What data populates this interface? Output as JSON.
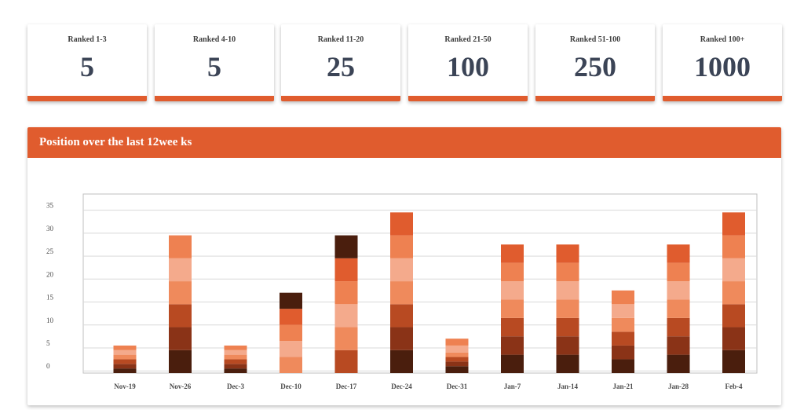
{
  "cards": [
    {
      "label": "Ranked 1-3",
      "value": "5"
    },
    {
      "label": "Ranked 4-10",
      "value": "5"
    },
    {
      "label": "Ranked 11-20",
      "value": "25"
    },
    {
      "label": "Ranked 21-50",
      "value": "100"
    },
    {
      "label": "Ranked 51-100",
      "value": "250"
    },
    {
      "label": "Ranked 100+",
      "value": "1000"
    }
  ],
  "panel": {
    "title": "Position  over the last 12wee ks"
  },
  "colors": {
    "accent": "#e05c2e",
    "series": [
      "#4a1e0d",
      "#8a3317",
      "#b84a22",
      "#ef8a5c",
      "#f4aa8c",
      "#ee8151",
      "#e05c2e"
    ]
  },
  "chart_data": {
    "type": "bar",
    "stacked": true,
    "categories": [
      "Nov-19",
      "Nov-26",
      "Dec-3",
      "Dec-10",
      "Dec-17",
      "Dec-24",
      "Dec-31",
      "Jan-7",
      "Jan-14",
      "Jan-21",
      "Jan-28",
      "Feb-4"
    ],
    "y_ticks": [
      "35",
      "30",
      "25",
      "20",
      "15",
      "10",
      "5",
      "0"
    ],
    "ylim": [
      -1.5,
      37.5
    ],
    "grid": true,
    "segments": [
      [
        1,
        1,
        1,
        1,
        1,
        1
      ],
      [
        5,
        5,
        5,
        5,
        5,
        5
      ],
      [
        1,
        1,
        1,
        1,
        1,
        1
      ],
      [
        0,
        0,
        0,
        3.5,
        3.5,
        3.5,
        3.5,
        3.5
      ],
      [
        0,
        0,
        5,
        5,
        5,
        5,
        5,
        5
      ],
      [
        5,
        5,
        5,
        5,
        5,
        5,
        5
      ],
      [
        1.5,
        1,
        1,
        1,
        1.5,
        1.5
      ],
      [
        4,
        4,
        4,
        4,
        4,
        4,
        4
      ],
      [
        4,
        4,
        4,
        4,
        4,
        4,
        4
      ],
      [
        3,
        3,
        3,
        3,
        3,
        3
      ],
      [
        4,
        4,
        4,
        4,
        4,
        4,
        4
      ],
      [
        5,
        5,
        5,
        5,
        5,
        5,
        5
      ]
    ]
  }
}
